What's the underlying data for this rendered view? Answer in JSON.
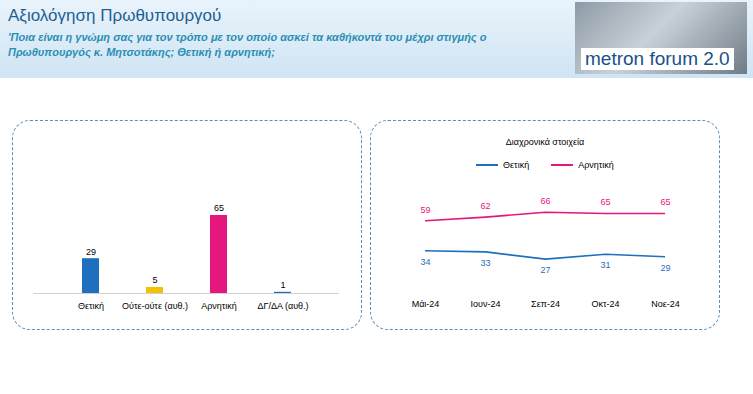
{
  "title": "Αξιολόγηση Πρωθυπουργού",
  "subtitle": "'Ποια είναι η γνώμη σας για τον τρόπο με τον οποίο ασκεί τα καθήκοντά του μέχρι στιγμής ο Πρωθυπουργός κ. Μητσοτάκης; Θετική ή αρνητική;",
  "logo": "metron forum 2.0",
  "chart_data": [
    {
      "type": "bar",
      "categories": [
        "Θετική",
        "Ούτε-ούτε (αυθ.)",
        "Αρνητική",
        "ΔΓ/ΔΑ (αυθ.)"
      ],
      "values": [
        29,
        5,
        65,
        1
      ],
      "colors": [
        "#1f6fbf",
        "#f2c200",
        "#e5177e",
        "#1f6fbf"
      ],
      "ylim": [
        0,
        65
      ],
      "data_labels": true,
      "tick_labels": "x"
    },
    {
      "type": "line",
      "title": "Διαχρονικά στοιχεία",
      "categories": [
        "Μάι-24",
        "Ιουν-24",
        "Σεπ-24",
        "Οκτ-24",
        "Νοε-24"
      ],
      "series": [
        {
          "name": "Θετική",
          "color": "#1f6fbf",
          "values": [
            34,
            33,
            27,
            31,
            29
          ]
        },
        {
          "name": "Αρνητική",
          "color": "#e5177e",
          "values": [
            59,
            62,
            66,
            65,
            65
          ]
        }
      ],
      "ylim": [
        0,
        80
      ],
      "data_labels": true,
      "tick_labels": "x",
      "legend": "top"
    }
  ]
}
